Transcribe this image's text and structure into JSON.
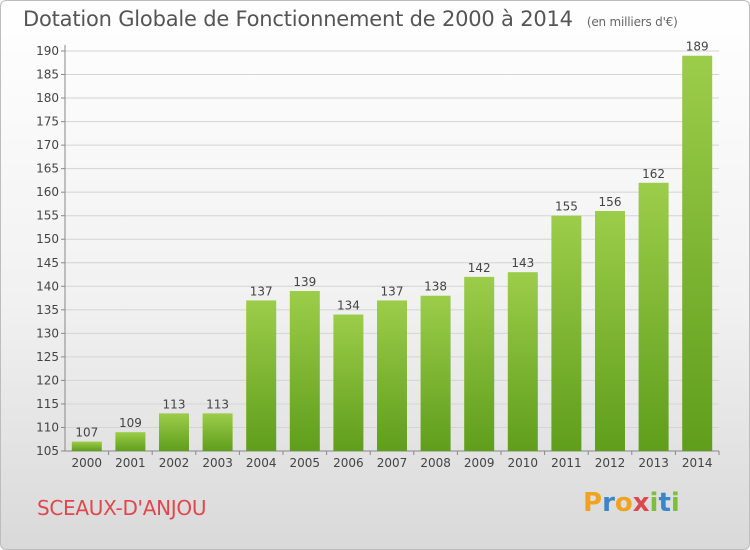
{
  "title": "Dotation Globale de Fonctionnement de 2000 à 2014",
  "subtitle": "(en milliers d'€)",
  "city": "SCEAUX-D'ANJOU",
  "logo": {
    "letters": [
      "P",
      "r",
      "o",
      "x",
      "i",
      "t",
      "i"
    ],
    "colors": [
      "#f0a320",
      "#3a86c8",
      "#f0a320",
      "#e0474c",
      "#7cbf3b",
      "#3a86c8",
      "#7cbf3b"
    ]
  },
  "colors": {
    "bar_top": "#9ccd4a",
    "bar_bottom": "#5f9e1b",
    "city": "#e0474c"
  },
  "chart_data": {
    "type": "bar",
    "categories": [
      "2000",
      "2001",
      "2002",
      "2003",
      "2004",
      "2005",
      "2006",
      "2007",
      "2008",
      "2009",
      "2010",
      "2011",
      "2012",
      "2013",
      "2014"
    ],
    "values": [
      107,
      109,
      113,
      113,
      137,
      139,
      134,
      137,
      138,
      142,
      143,
      155,
      156,
      162,
      189
    ],
    "ylim": [
      105,
      190
    ],
    "yticks": [
      105,
      110,
      115,
      120,
      125,
      130,
      135,
      140,
      145,
      150,
      155,
      160,
      165,
      170,
      175,
      180,
      185,
      190
    ],
    "grid": true
  }
}
